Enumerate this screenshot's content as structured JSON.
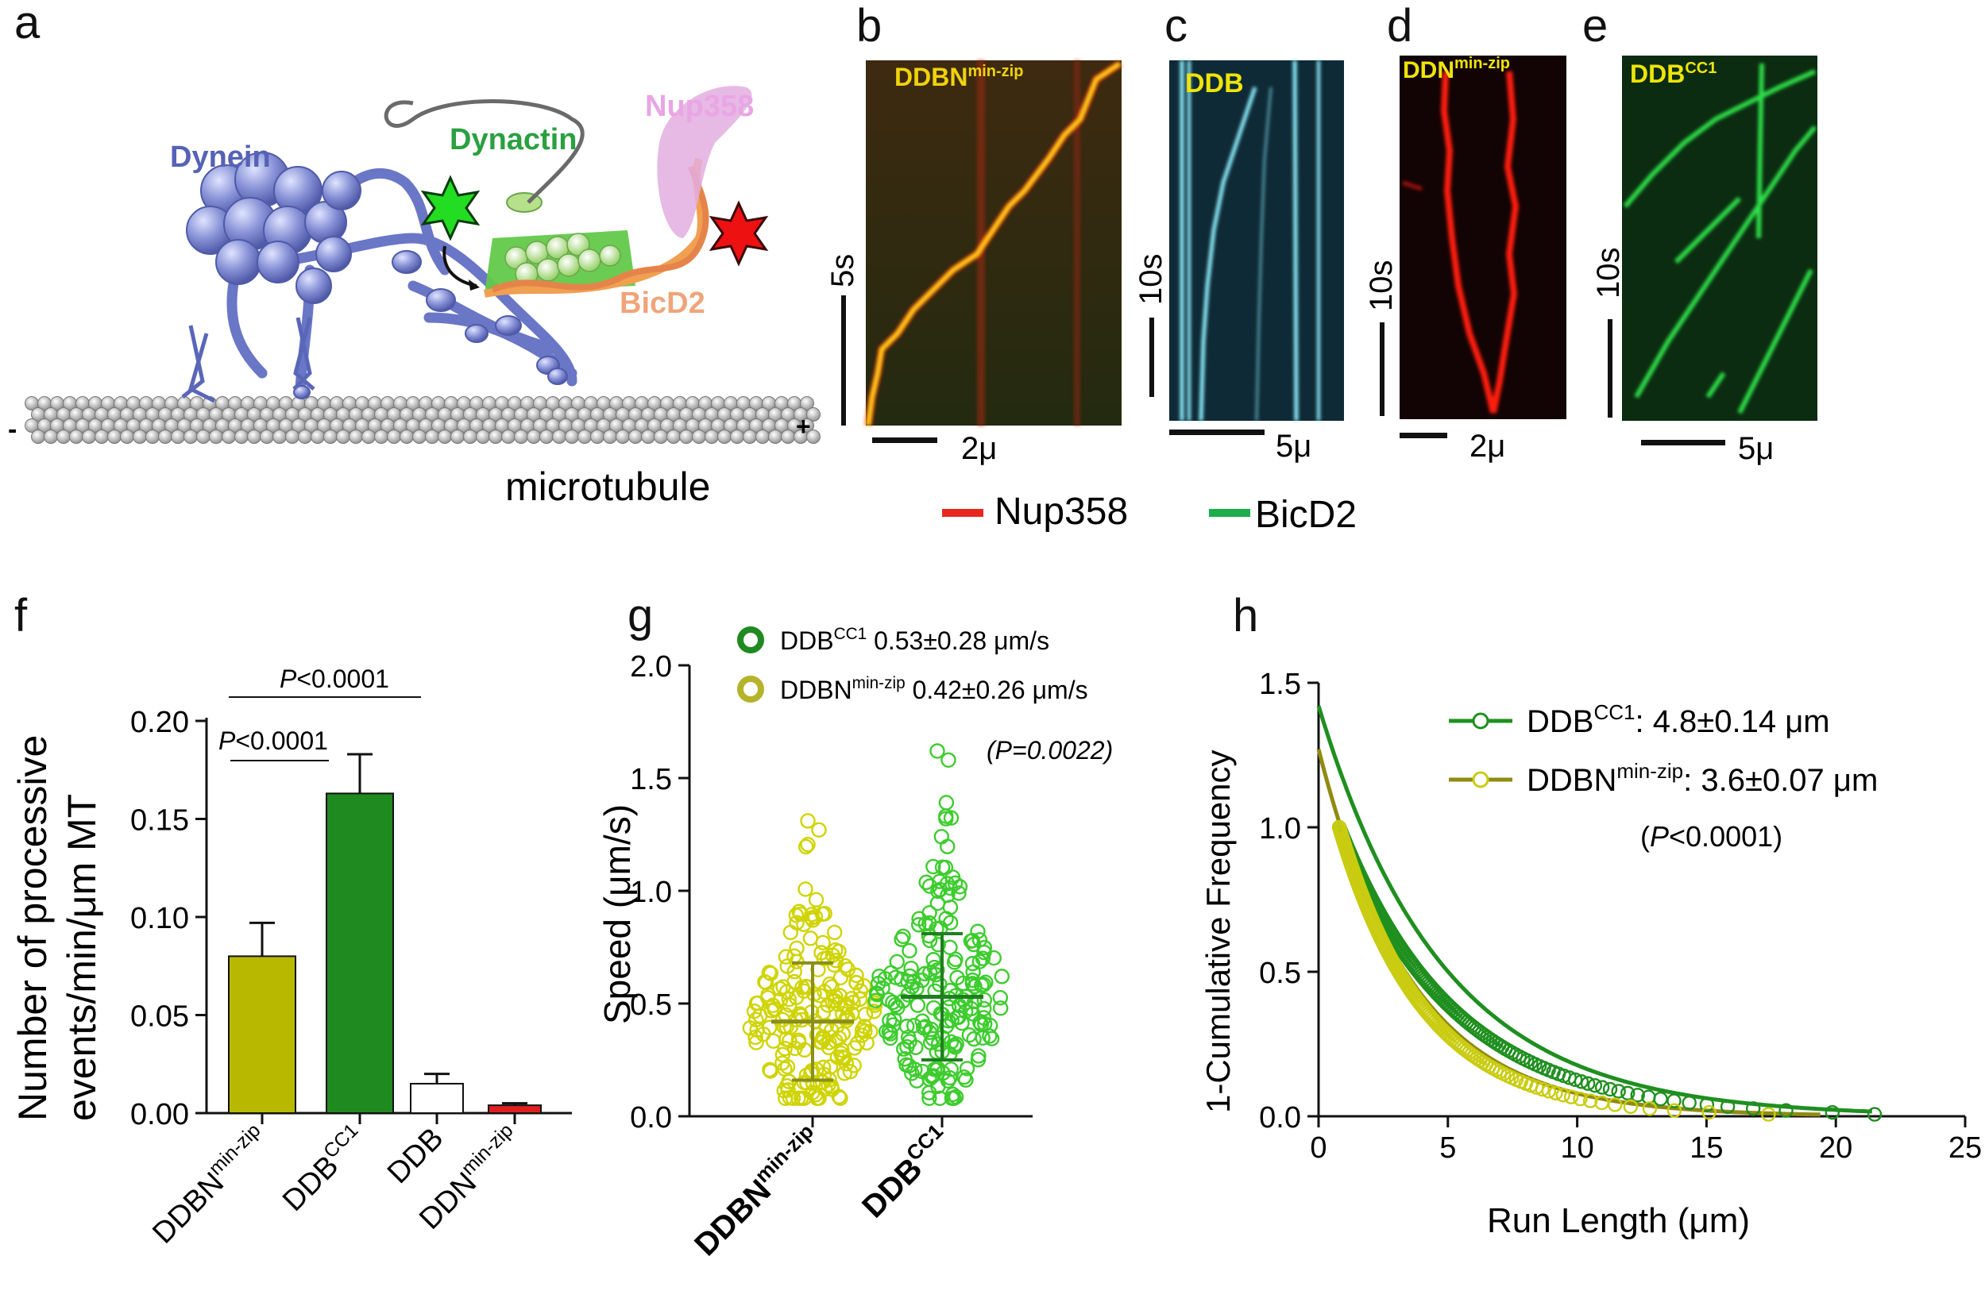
{
  "panels": {
    "a": "a",
    "b": "b",
    "c": "c",
    "d": "d",
    "e": "e",
    "f": "f",
    "g": "g",
    "h": "h"
  },
  "schematic": {
    "dynein": "Dynein",
    "dynactin": "Dynactin",
    "nup358": "Nup358",
    "bicd2": "BicD2",
    "microtubule": "microtubule",
    "minus": "-",
    "plus": "+"
  },
  "kymographs": [
    {
      "panel": "b",
      "label_base": "DDBN",
      "label_sup": "min-zip",
      "time_scale": "5s",
      "length_scale": "2μ",
      "color": "#d8c20a"
    },
    {
      "panel": "c",
      "label_base": "DDB",
      "label_sup": "",
      "time_scale": "10s",
      "length_scale": "5μ",
      "color": "#e5e20a"
    },
    {
      "panel": "d",
      "label_base": "DDN",
      "label_sup": "min-zip",
      "time_scale": "10s",
      "length_scale": "2μ",
      "color": "#e5e20a"
    },
    {
      "panel": "e",
      "label_base": "DDB",
      "label_sup": "CC1",
      "time_scale": "10s",
      "length_scale": "5μ",
      "color": "#e5e20a"
    }
  ],
  "legend_channels": [
    {
      "label": "Nup358",
      "color": "#e8281e"
    },
    {
      "label": "BicD2",
      "color": "#1aad4a"
    }
  ],
  "colors": {
    "olive": "#b8b800",
    "darkgreen": "#1f8a1f",
    "red": "#e02020",
    "scatter_yellow": "#cfd400",
    "scatter_green": "#3dcc2e",
    "cdf_green": "#1f8f1f",
    "cdf_yellow": "#c9cc10"
  },
  "chart_data": [
    {
      "panel": "f",
      "type": "bar",
      "ylabel_line1": "Number of processive",
      "ylabel_line2": "events/min/μm MT",
      "ylim": [
        0,
        0.2
      ],
      "yticks": [
        "0.00",
        "0.05",
        "0.10",
        "0.15",
        "0.20"
      ],
      "categories": [
        {
          "base": "DDBN",
          "sup": "min-zip"
        },
        {
          "base": "DDB",
          "sup": "CC1"
        },
        {
          "base": "DDB",
          "sup": ""
        },
        {
          "base": "DDN",
          "sup": "min-zip"
        }
      ],
      "values": [
        0.08,
        0.163,
        0.015,
        0.004
      ],
      "errors": [
        0.017,
        0.02,
        0.005,
        0.001
      ],
      "comparisons": [
        {
          "text_italic": "P",
          "text": "<0.0001",
          "from": 0,
          "to": 1
        },
        {
          "text_italic": "P",
          "text": "<0.0001",
          "from": 0,
          "to": 2
        }
      ]
    },
    {
      "panel": "g",
      "type": "scatter",
      "ylabel": "Speed (μm/s)",
      "ylim": [
        0,
        2.0
      ],
      "yticks": [
        "0.0",
        "0.5",
        "1.0",
        "1.5",
        "2.0"
      ],
      "categories": [
        {
          "base": "DDBN",
          "sup": "min-zip"
        },
        {
          "base": "DDB",
          "sup": "CC1"
        }
      ],
      "legend": [
        {
          "base": "DDB",
          "sup": "CC1",
          "value": "0.53±0.28 μm/s"
        },
        {
          "base": "DDBN",
          "sup": "min-zip",
          "value": "0.42±0.26 μm/s"
        }
      ],
      "pvalue": "(P=0.0022)",
      "series": [
        {
          "mean": 0.42,
          "sd": 0.26,
          "max": 1.31
        },
        {
          "mean": 0.53,
          "sd": 0.28,
          "max": 1.62
        }
      ]
    },
    {
      "panel": "h",
      "type": "line",
      "xlabel": "Run Length (μm)",
      "ylabel": "1-Cumulative Frequency",
      "xlim": [
        0,
        25
      ],
      "ylim": [
        0,
        1.5
      ],
      "xticks": [
        "0",
        "5",
        "10",
        "15",
        "20",
        "25"
      ],
      "yticks": [
        "0.0",
        "0.5",
        "1.0",
        "1.5"
      ],
      "legend": [
        {
          "base": "DDB",
          "sup": "CC1",
          "value": ": 4.8±0.14 μm"
        },
        {
          "base": "DDBN",
          "sup": "min-zip",
          "value": ": 3.6±0.07 μm"
        }
      ],
      "pvalue_italic": "P",
      "pvalue": "<0.0001",
      "series": [
        {
          "tau": 4.8,
          "y0": 1.42,
          "xmax": 21.5
        },
        {
          "tau": 3.6,
          "y0": 1.27,
          "xmax": 19.5
        }
      ]
    }
  ]
}
